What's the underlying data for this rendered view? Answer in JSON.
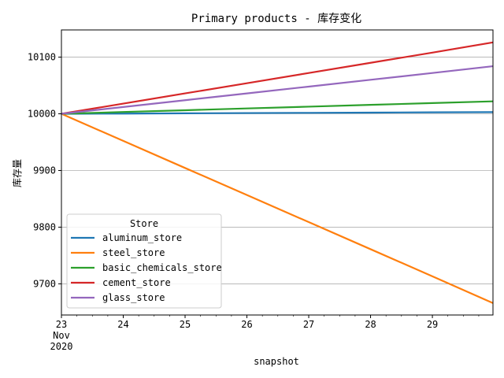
{
  "chart_data": {
    "type": "line",
    "title": "Primary products - 库存变化",
    "xlabel": "snapshot",
    "ylabel": "库存量",
    "x": [
      23,
      24,
      25,
      26,
      27,
      28,
      29,
      29.98
    ],
    "x_tick_values": [
      23,
      24,
      25,
      26,
      27,
      28,
      29
    ],
    "x_tick_labels": [
      "23",
      "24",
      "25",
      "26",
      "27",
      "28",
      "29"
    ],
    "x_tick_sublabels": [
      "Nov",
      "2020"
    ],
    "xlim": [
      23,
      29.98
    ],
    "ylim": [
      9645,
      10148
    ],
    "y_ticks": [
      9700,
      9800,
      9900,
      10000,
      10100
    ],
    "grid": "horizontal",
    "legend": {
      "title": "Store",
      "position": "lower-left"
    },
    "series": [
      {
        "name": "aluminum_store",
        "color": "#1f77b4",
        "values": [
          10000,
          10000.4,
          10000.9,
          10001.3,
          10001.7,
          10002.1,
          10002.6,
          10003
        ]
      },
      {
        "name": "steel_store",
        "color": "#ff7f0e",
        "values": [
          10000,
          9952.2,
          9904.4,
          9856.7,
          9808.9,
          9761.1,
          9713.3,
          9666
        ]
      },
      {
        "name": "basic_chemicals_store",
        "color": "#2ca02c",
        "values": [
          10000,
          10003.2,
          10006.3,
          10009.5,
          10012.6,
          10015.8,
          10018.9,
          10022
        ]
      },
      {
        "name": "cement_store",
        "color": "#d62728",
        "values": [
          10000,
          10018,
          10036,
          10054,
          10072,
          10090,
          10108,
          10126
        ]
      },
      {
        "name": "glass_store",
        "color": "#9467bd",
        "values": [
          10000,
          10012,
          10024,
          10036,
          10048,
          10060,
          10072,
          10084
        ]
      }
    ]
  }
}
